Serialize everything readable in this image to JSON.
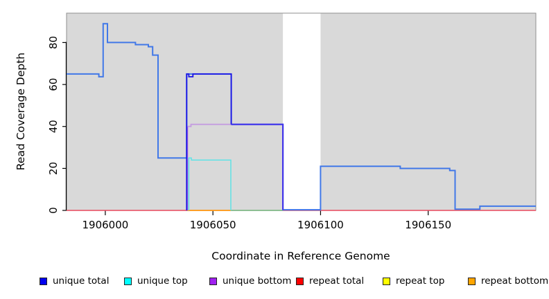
{
  "figure": {
    "background": "#ffffff"
  },
  "axes": {
    "x": {
      "title": "Coordinate in Reference Genome"
    },
    "y": {
      "title": "Read Coverage Depth"
    }
  },
  "legend": {
    "items": [
      {
        "label": "unique total",
        "color": "#0000EE"
      },
      {
        "label": "unique top",
        "color": "#00FFFF"
      },
      {
        "label": "unique bottom",
        "color": "#A020F0"
      },
      {
        "label": "repeat total",
        "color": "#FF0000"
      },
      {
        "label": "repeat top",
        "color": "#FFFF00"
      },
      {
        "label": "repeat bottom",
        "color": "#FFA500"
      }
    ]
  },
  "chart_data": {
    "type": "line",
    "title": "",
    "xlabel": "Coordinate in Reference Genome",
    "ylabel": "Read Coverage Depth",
    "xlim": [
      1905982,
      1906200
    ],
    "ylim": [
      0,
      94
    ],
    "x_ticks": [
      {
        "value": 1906000,
        "label": "1906000"
      },
      {
        "value": 1906050,
        "label": "1906050"
      },
      {
        "value": 1906100,
        "label": "1906100"
      },
      {
        "value": 1906150,
        "label": "1906150"
      }
    ],
    "y_ticks": [
      {
        "value": 0,
        "label": "0"
      },
      {
        "value": 20,
        "label": "20"
      },
      {
        "value": 40,
        "label": "40"
      },
      {
        "value": 60,
        "label": "60"
      },
      {
        "value": 80,
        "label": "80"
      }
    ],
    "grid": false,
    "legend_position": "bottom",
    "shade_color": "#D9D9D9",
    "box_color": "#8F8F8F",
    "axis_color": "#000000",
    "shaded_regions": [
      {
        "x0": 1905982,
        "x1": 1906082.5
      },
      {
        "x0": 1906100,
        "x1": 1906200
      }
    ],
    "gap_region": {
      "x0": 1906082.5,
      "x1": 1906100
    },
    "series": [
      {
        "name": "coverage all reads (unlabeled blue line)",
        "steps": [
          [
            1905982,
            65
          ],
          [
            1905997,
            64
          ],
          [
            1905999,
            89
          ],
          [
            1906001,
            80
          ],
          [
            1906014,
            79
          ],
          [
            1906020,
            78
          ],
          [
            1906022,
            74
          ],
          [
            1906024,
            25
          ],
          [
            1906038,
            65
          ],
          [
            1906058,
            41
          ],
          [
            1906082,
            0
          ],
          [
            1906100,
            21
          ],
          [
            1906137,
            20
          ],
          [
            1906160,
            19
          ],
          [
            1906162,
            0
          ],
          [
            1906174,
            2
          ],
          [
            1906200,
            2
          ]
        ]
      },
      {
        "name": "unique total",
        "steps": [
          [
            1905982,
            0
          ],
          [
            1906038,
            65
          ],
          [
            1906039,
            64
          ],
          [
            1906041,
            65
          ],
          [
            1906058,
            41
          ],
          [
            1906082,
            0
          ],
          [
            1906200,
            0
          ]
        ]
      },
      {
        "name": "unique top",
        "steps": [
          [
            1905982,
            0
          ],
          [
            1906038,
            24
          ],
          [
            1906058,
            0
          ],
          [
            1906200,
            0
          ]
        ]
      },
      {
        "name": "unique bottom",
        "steps": [
          [
            1905982,
            0
          ],
          [
            1906038,
            41
          ],
          [
            1906082,
            0
          ],
          [
            1906200,
            0
          ]
        ]
      },
      {
        "name": "repeat total",
        "steps": [
          [
            1905982,
            0
          ],
          [
            1906200,
            0
          ]
        ]
      },
      {
        "name": "repeat top",
        "steps": [
          [
            1905982,
            0
          ],
          [
            1906200,
            0
          ]
        ]
      },
      {
        "name": "repeat bottom",
        "steps": [
          [
            1905982,
            0
          ],
          [
            1906200,
            0
          ]
        ]
      }
    ],
    "render_polylines": [
      {
        "name": "repeat-total-line",
        "color": "#E8495C",
        "width": 1.5,
        "points": [
          [
            1905982,
            0
          ],
          [
            1906200,
            0
          ]
        ]
      },
      {
        "name": "repeat-bottom-line",
        "color": "#FFA018",
        "width": 1.8,
        "points": [
          [
            1906038,
            0
          ],
          [
            1906058.3,
            0
          ]
        ]
      },
      {
        "name": "baseline-green-mix",
        "color": "#6FCB8E",
        "width": 1.5,
        "points": [
          [
            1906058.3,
            0
          ],
          [
            1906082.5,
            0
          ]
        ]
      },
      {
        "name": "gap-baseline-violet",
        "color": "#5A46EC",
        "width": 1.8,
        "points": [
          [
            1906082.5,
            0.3
          ],
          [
            1906100,
            0.3
          ]
        ]
      },
      {
        "name": "coverage-line",
        "color": "#4178E8",
        "width": 2,
        "points": [
          [
            1905982,
            65
          ],
          [
            1905997,
            65
          ],
          [
            1905997,
            63.7
          ],
          [
            1905999,
            63.7
          ],
          [
            1905999,
            89
          ],
          [
            1906001,
            89
          ],
          [
            1906001,
            80
          ],
          [
            1906014,
            80
          ],
          [
            1906014,
            79
          ],
          [
            1906020,
            79
          ],
          [
            1906020,
            78
          ],
          [
            1906022,
            78
          ],
          [
            1906022,
            74
          ],
          [
            1906024.5,
            74
          ],
          [
            1906024.5,
            25
          ],
          [
            1906037.8,
            25
          ],
          [
            1906037.8,
            65
          ],
          [
            1906058.5,
            65
          ],
          [
            1906058.5,
            41
          ],
          [
            1906082.5,
            41
          ],
          [
            1906082.5,
            0.3
          ],
          [
            1906100,
            0.3
          ],
          [
            1906100,
            21
          ],
          [
            1906137,
            21
          ],
          [
            1906137,
            20
          ],
          [
            1906160,
            20
          ],
          [
            1906160,
            19
          ],
          [
            1906162.5,
            19
          ],
          [
            1906162.5,
            0.6
          ],
          [
            1906174,
            0.6
          ],
          [
            1906174,
            2
          ],
          [
            1906200,
            2
          ]
        ]
      },
      {
        "name": "unique-bottom-rise",
        "color": "#A85CE4",
        "width": 1.5,
        "points": [
          [
            1906038.2,
            0
          ],
          [
            1906038.2,
            40
          ]
        ]
      },
      {
        "name": "unique-bottom-line",
        "color": "#C49CE0",
        "width": 1.8,
        "points": [
          [
            1906038.2,
            40
          ],
          [
            1906039.8,
            40
          ],
          [
            1906039.8,
            41
          ],
          [
            1906058.5,
            41
          ]
        ]
      },
      {
        "name": "unique-top-line",
        "color": "#5FE3E6",
        "width": 1.5,
        "points": [
          [
            1906038.8,
            0
          ],
          [
            1906038.8,
            25
          ],
          [
            1906040,
            25
          ],
          [
            1906040,
            24
          ],
          [
            1906058.3,
            24
          ],
          [
            1906058.3,
            0
          ]
        ]
      },
      {
        "name": "unique-total-line",
        "color": "#1A14E6",
        "width": 1.8,
        "points": [
          [
            1906037.8,
            0
          ],
          [
            1906037.8,
            65
          ],
          [
            1906038.8,
            65
          ],
          [
            1906038.8,
            63.7
          ],
          [
            1906040.7,
            63.7
          ],
          [
            1906040.7,
            65
          ],
          [
            1906058.5,
            65
          ],
          [
            1906058.5,
            41
          ]
        ]
      },
      {
        "name": "unique-total-41-overlap",
        "color": "#4335EA",
        "width": 2.2,
        "points": [
          [
            1906058.5,
            41
          ],
          [
            1906082.5,
            41
          ],
          [
            1906082.5,
            0.3
          ]
        ]
      }
    ]
  }
}
